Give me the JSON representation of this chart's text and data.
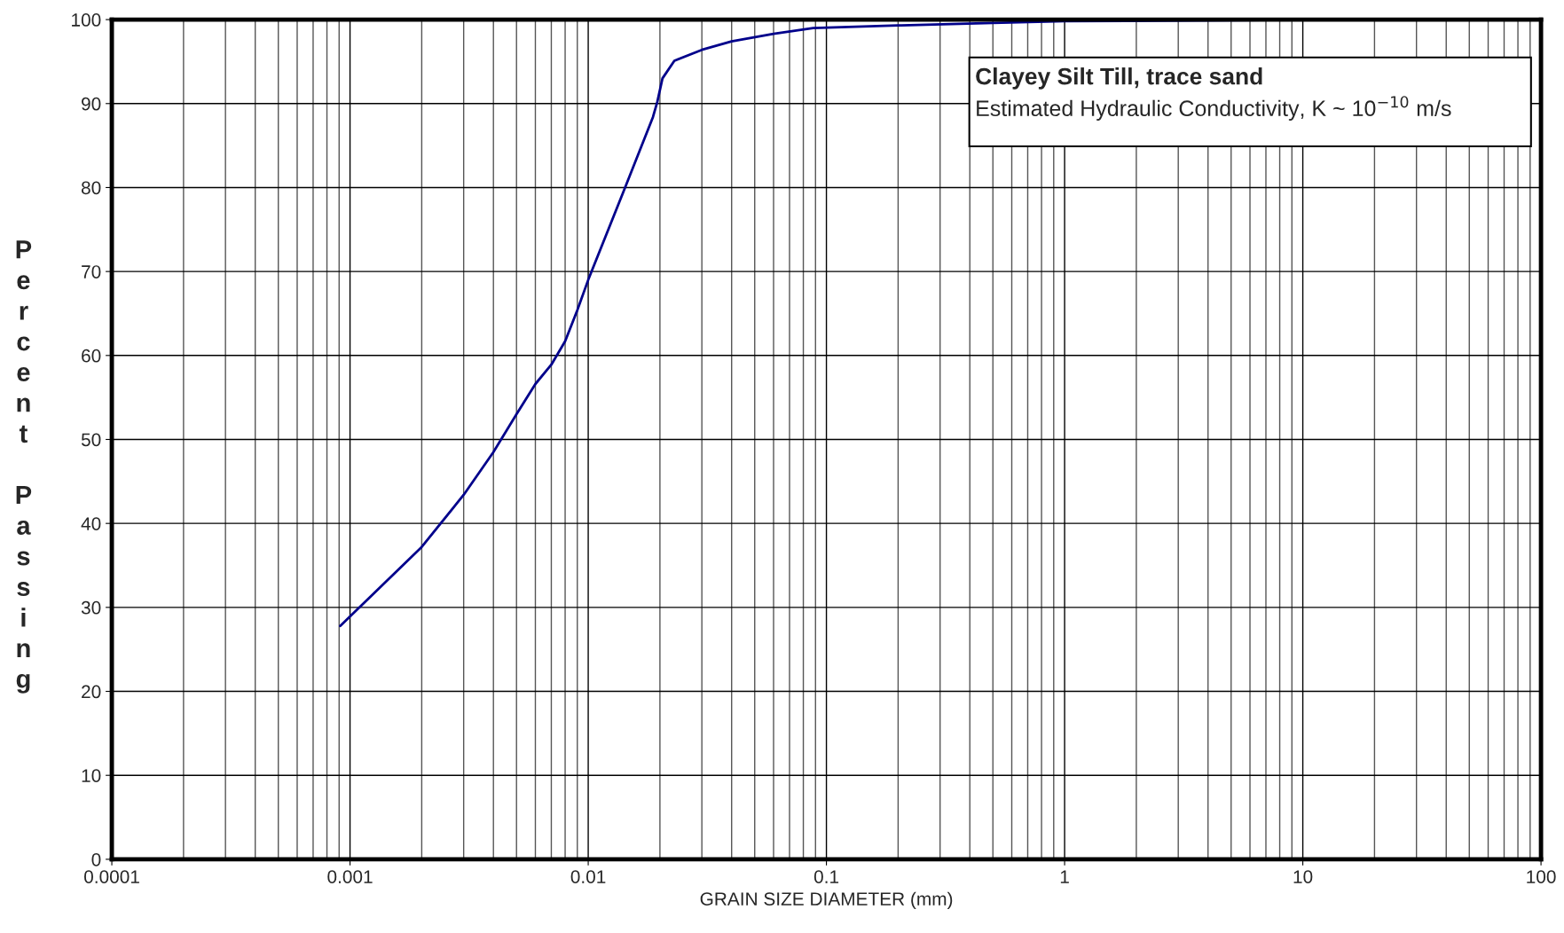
{
  "chart_data": {
    "type": "line",
    "xlabel": "GRAIN SIZE DIAMETER (mm)",
    "ylabel": "Percent Passing",
    "annotations": [
      "Clayey Silt Till, trace sand",
      "Estimated Hydraulic Conductivity, K ~ 10$^{−10}$ m/s"
    ],
    "log": "x",
    "grid": true,
    "xlim": [
      0.0001,
      100
    ],
    "xticks": [
      0.0001,
      0.001,
      0.01,
      0.1,
      1,
      10,
      100
    ],
    "ylim": [
      0,
      100
    ],
    "yticks": [
      0,
      10,
      20,
      30,
      40,
      50,
      60,
      70,
      80,
      90,
      100
    ],
    "marker": "none",
    "line_style": "solid",
    "series": [
      {
        "color": "#00008b",
        "x": [
          0.00091,
          0.002,
          0.003,
          0.004,
          0.005,
          0.006,
          0.007,
          0.008,
          0.009,
          0.01,
          0.0141,
          0.0187,
          0.0195,
          0.0205,
          0.023,
          0.03,
          0.04,
          0.06,
          0.088,
          0.2,
          0.5,
          1,
          13.1
        ],
        "values": [
          27.8,
          37.2,
          43.4,
          48.5,
          53.0,
          56.6,
          58.9,
          61.7,
          65.4,
          69.0,
          79.6,
          88.4,
          90.2,
          93.0,
          95.1,
          96.4,
          97.4,
          98.3,
          99.0,
          99.3,
          99.6,
          99.8,
          100
        ]
      }
    ]
  }
}
